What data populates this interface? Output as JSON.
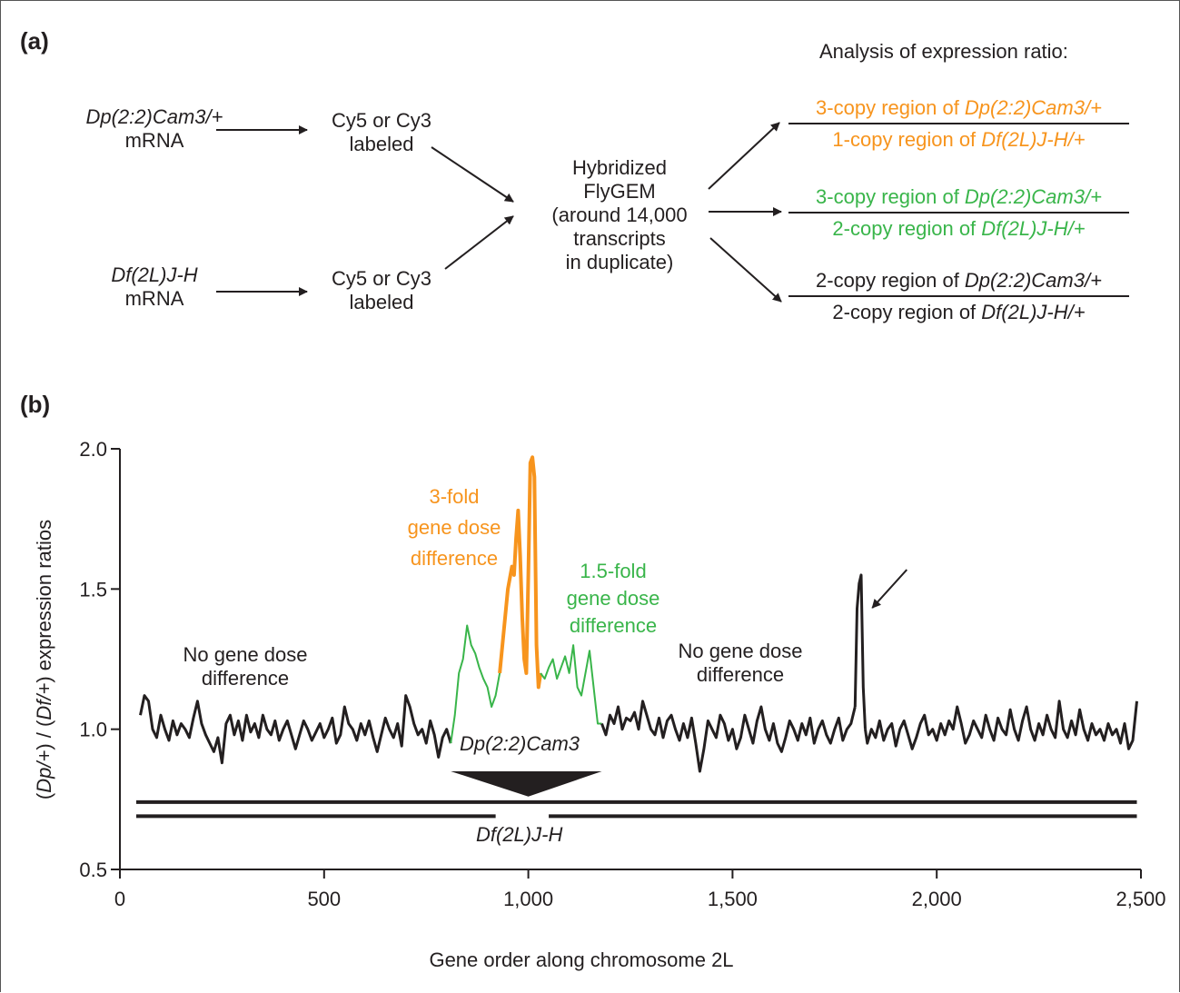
{
  "panel_a": {
    "label": "(a)",
    "header": "Analysis of expression ratio:",
    "sample1": {
      "name": "Dp(2:2)Cam3/+",
      "sub": "mRNA"
    },
    "sample2": {
      "name": "Df(2L)J-H",
      "sub": "mRNA"
    },
    "label1": {
      "line1": "Cy5 or Cy3",
      "line2": "labeled"
    },
    "label2": {
      "line1": "Cy5 or Cy3",
      "line2": "labeled"
    },
    "hyb": [
      "Hybridized",
      "FlyGEM",
      "(around 14,000",
      "transcripts",
      "in duplicate)"
    ],
    "ratios": [
      {
        "num_pre": "3-copy region of ",
        "num_it": "Dp(2:2)Cam3/+",
        "den_pre": "1-copy region of ",
        "den_it": "Df(2L)J-H/+",
        "color": "#f7941d"
      },
      {
        "num_pre": "3-copy region of ",
        "num_it": "Dp(2:2)Cam3/+",
        "den_pre": "2-copy region of ",
        "den_it": "Df(2L)J-H/+",
        "color": "#39b54a"
      },
      {
        "num_pre": "2-copy region of ",
        "num_it": "Dp(2:2)Cam3/+",
        "den_pre": "2-copy region of ",
        "den_it": "Df(2L)J-H/+",
        "color": "#231f20"
      }
    ]
  },
  "panel_b": {
    "label": "(b)",
    "annotations": {
      "left_nodiff": [
        "No gene dose",
        "difference"
      ],
      "right_nodiff": [
        "No gene dose",
        "difference"
      ],
      "threefold": [
        "3-fold",
        "gene dose",
        "difference"
      ],
      "onefive": [
        "1.5-fold",
        "gene dose",
        "difference"
      ],
      "dp_label": "Dp(2:2)Cam3",
      "df_label": "Df(2L)J-H"
    }
  },
  "chart_data": {
    "type": "line",
    "xlabel": "Gene order along chromosome 2L",
    "ylabel_parts": [
      "(",
      "Dp/+",
      ") / (",
      "Df/+",
      ") expression ratios"
    ],
    "xlim": [
      0,
      2500
    ],
    "ylim": [
      0.5,
      2.0
    ],
    "xticks": [
      0,
      500,
      1000,
      1500,
      2000,
      2500
    ],
    "xtick_labels": [
      "0",
      "500",
      "1,000",
      "1,500",
      "2,000",
      "2,500"
    ],
    "yticks": [
      0.5,
      1.0,
      1.5,
      2.0
    ],
    "ytick_labels": [
      "0.5",
      "1.0",
      "1.5",
      "2.0"
    ],
    "colors": {
      "base": "#231f20",
      "threefold": "#f7941d",
      "onefive": "#39b54a"
    },
    "series": [
      {
        "color_key": "base",
        "x": [
          50,
          60,
          70,
          80,
          90,
          100,
          110,
          120,
          130,
          140,
          150,
          160,
          170,
          180,
          190,
          200,
          210,
          220,
          230,
          240,
          250,
          260,
          270,
          280,
          290,
          300,
          310,
          320,
          330,
          340,
          350,
          360,
          370,
          380,
          390,
          400,
          410,
          420,
          430,
          440,
          450,
          460,
          470,
          480,
          490,
          500,
          510,
          520,
          530,
          540,
          550,
          560,
          570,
          580,
          590,
          600,
          610,
          620,
          630,
          640,
          650,
          660,
          670,
          680,
          690,
          700,
          710,
          720,
          730,
          740,
          750,
          760,
          770,
          780,
          790,
          800,
          810
        ],
        "y": [
          1.05,
          1.12,
          1.1,
          1.0,
          0.97,
          1.05,
          1.0,
          0.96,
          1.03,
          0.98,
          1.02,
          1.0,
          0.97,
          1.04,
          1.1,
          1.02,
          0.98,
          0.95,
          0.92,
          0.97,
          0.88,
          1.02,
          1.05,
          0.98,
          1.03,
          0.96,
          1.05,
          0.99,
          1.02,
          0.97,
          1.05,
          1.0,
          0.98,
          1.03,
          0.96,
          1.0,
          1.03,
          0.98,
          0.93,
          0.98,
          1.03,
          1.0,
          0.96,
          0.99,
          1.02,
          0.97,
          1.0,
          1.04,
          0.95,
          0.98,
          1.08,
          1.02,
          1.0,
          0.96,
          1.02,
          0.98,
          1.03,
          0.97,
          0.92,
          0.98,
          1.04,
          1.0,
          0.97,
          1.02,
          0.94,
          1.12,
          1.08,
          1.02,
          0.98,
          1.0,
          0.95,
          1.03,
          0.98,
          0.9,
          0.97,
          1.0,
          0.95
        ]
      },
      {
        "color_key": "onefive",
        "x": [
          810,
          820,
          830,
          840,
          850,
          860,
          870,
          880,
          890,
          900,
          910,
          920,
          930
        ],
        "y": [
          0.95,
          1.05,
          1.2,
          1.25,
          1.37,
          1.3,
          1.27,
          1.22,
          1.18,
          1.15,
          1.08,
          1.12,
          1.2
        ]
      },
      {
        "color_key": "threefold",
        "x": [
          930,
          940,
          950,
          960,
          965,
          970,
          975,
          980,
          985,
          990,
          995,
          1000,
          1005,
          1010,
          1015,
          1020,
          1025,
          1030
        ],
        "y": [
          1.2,
          1.35,
          1.5,
          1.58,
          1.55,
          1.68,
          1.78,
          1.62,
          1.4,
          1.25,
          1.2,
          1.55,
          1.95,
          1.97,
          1.9,
          1.3,
          1.15,
          1.2
        ]
      },
      {
        "color_key": "onefive",
        "x": [
          1030,
          1040,
          1050,
          1060,
          1070,
          1080,
          1090,
          1100,
          1110,
          1120,
          1130,
          1140,
          1150,
          1160,
          1170,
          1180
        ],
        "y": [
          1.2,
          1.18,
          1.22,
          1.25,
          1.18,
          1.22,
          1.26,
          1.2,
          1.3,
          1.15,
          1.12,
          1.2,
          1.28,
          1.15,
          1.02,
          1.02
        ]
      },
      {
        "color_key": "base",
        "x": [
          1180,
          1190,
          1200,
          1210,
          1220,
          1230,
          1240,
          1250,
          1260,
          1270,
          1280,
          1290,
          1300,
          1310,
          1320,
          1330,
          1340,
          1350,
          1360,
          1370,
          1380,
          1390,
          1400,
          1410,
          1420,
          1430,
          1440,
          1450,
          1460,
          1470,
          1480,
          1490,
          1500,
          1510,
          1520,
          1530,
          1540,
          1550,
          1560,
          1570,
          1580,
          1590,
          1600,
          1610,
          1620,
          1630,
          1640,
          1650,
          1660,
          1670,
          1680,
          1690,
          1700,
          1710,
          1720,
          1730,
          1740,
          1750,
          1760,
          1770,
          1780,
          1790,
          1800
        ],
        "y": [
          1.02,
          0.98,
          1.05,
          1.02,
          1.08,
          1.0,
          1.04,
          1.03,
          1.06,
          1.0,
          1.1,
          1.05,
          1.0,
          0.98,
          1.04,
          0.97,
          1.03,
          1.05,
          1.0,
          0.96,
          1.02,
          0.97,
          1.04,
          0.95,
          0.85,
          0.93,
          1.03,
          1.0,
          0.97,
          1.05,
          1.02,
          0.96,
          1.0,
          0.93,
          0.97,
          1.05,
          1.0,
          0.95,
          1.03,
          1.08,
          1.0,
          0.96,
          1.02,
          0.95,
          0.92,
          0.97,
          1.03,
          1.0,
          0.96,
          1.02,
          0.98,
          1.04,
          0.95,
          1.0,
          1.03,
          0.98,
          0.95,
          1.0,
          1.04,
          0.96,
          1.0,
          1.02,
          1.08
        ]
      },
      {
        "color_key": "base",
        "x": [
          1800,
          1805,
          1810,
          1815,
          1820,
          1825
        ],
        "y": [
          1.08,
          1.43,
          1.52,
          1.55,
          1.15,
          1.0
        ]
      },
      {
        "color_key": "base",
        "x": [
          1825,
          1830,
          1840,
          1850,
          1860,
          1870,
          1880,
          1890,
          1900,
          1910,
          1920,
          1930,
          1940,
          1950,
          1960,
          1970,
          1980,
          1990,
          2000,
          2010,
          2020,
          2030,
          2040,
          2050,
          2060,
          2070,
          2080,
          2090,
          2100,
          2110,
          2120,
          2130,
          2140,
          2150,
          2160,
          2170,
          2180,
          2190,
          2200,
          2210,
          2220,
          2230,
          2240,
          2250,
          2260,
          2270,
          2280,
          2290,
          2300,
          2310,
          2320,
          2330,
          2340,
          2350,
          2360,
          2370,
          2380,
          2390,
          2400,
          2410,
          2420,
          2430,
          2440,
          2450,
          2460,
          2470,
          2480,
          2490
        ],
        "y": [
          1.0,
          0.95,
          1.0,
          0.97,
          1.03,
          0.96,
          1.0,
          1.02,
          0.94,
          1.0,
          1.03,
          0.98,
          0.93,
          0.97,
          1.02,
          1.05,
          0.98,
          1.0,
          0.96,
          1.02,
          0.98,
          1.03,
          1.0,
          1.08,
          1.02,
          0.95,
          0.98,
          1.03,
          1.0,
          0.97,
          1.05,
          1.0,
          0.96,
          1.04,
          1.0,
          0.98,
          1.07,
          1.0,
          0.96,
          1.03,
          1.08,
          1.0,
          0.96,
          1.02,
          0.98,
          1.05,
          1.0,
          0.97,
          1.1,
          1.0,
          0.97,
          1.03,
          0.98,
          1.07,
          1.0,
          0.96,
          1.02,
          0.98,
          1.0,
          0.96,
          1.02,
          0.98,
          1.0,
          0.95,
          1.02,
          0.93,
          0.96,
          1.1
        ]
      }
    ],
    "arrow_target": {
      "x": 1820,
      "y": 1.42
    },
    "bars": {
      "top": {
        "x": [
          40,
          2490
        ],
        "y": 0.74
      },
      "bottom_left": {
        "x": [
          40,
          920
        ],
        "y": 0.69
      },
      "bottom_right": {
        "x": [
          1050,
          2490
        ],
        "y": 0.69
      },
      "triangle": {
        "x": [
          810,
          1180
        ],
        "tip_x": 1000,
        "y_top": 0.85,
        "y_tip": 0.76
      }
    }
  }
}
